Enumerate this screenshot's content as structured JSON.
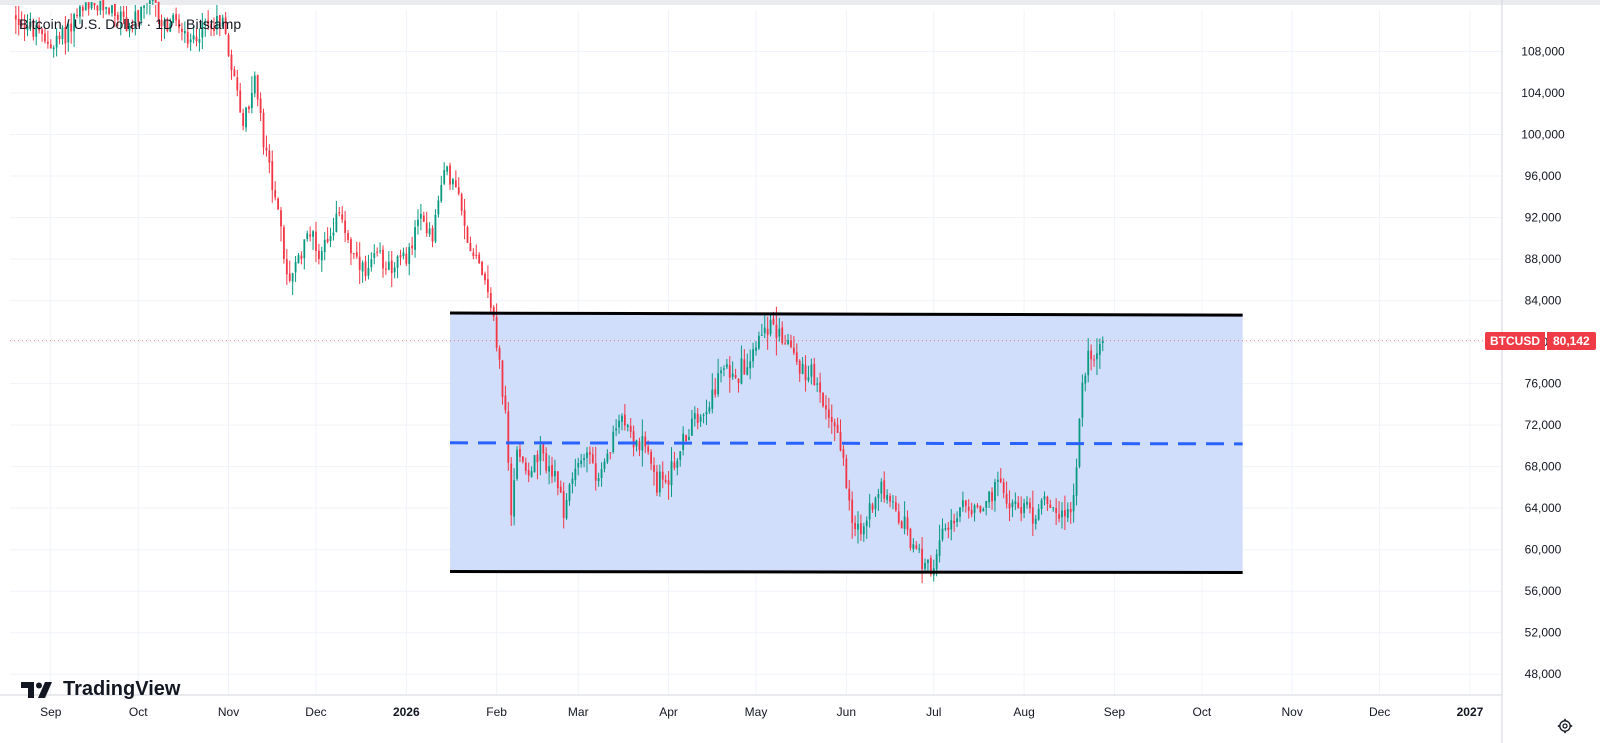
{
  "header": {
    "title": "Bitcoin / U.S. Dollar · 1D · Bitstamp"
  },
  "logo": {
    "text": "TradingView",
    "icon": "tradingview-logo-icon"
  },
  "price_badge": {
    "symbol": "BTCUSD",
    "value": "80,142",
    "color": "#ef3b45"
  },
  "settings": {
    "icon": "gear-icon"
  },
  "chart_data": {
    "type": "candlestick",
    "interval": "1D",
    "x_axis": {
      "start": "2025-08-18",
      "end": "2027-01-12",
      "tick_labels": [
        {
          "date": "2025-09-01",
          "label": "Sep"
        },
        {
          "date": "2025-10-01",
          "label": "Oct"
        },
        {
          "date": "2025-11-01",
          "label": "Nov"
        },
        {
          "date": "2025-12-01",
          "label": "Dec"
        },
        {
          "date": "2026-01-01",
          "label": "2026"
        },
        {
          "date": "2026-02-01",
          "label": "Feb"
        },
        {
          "date": "2026-03-01",
          "label": "Mar"
        },
        {
          "date": "2026-04-01",
          "label": "Apr"
        },
        {
          "date": "2026-05-01",
          "label": "May"
        },
        {
          "date": "2026-06-01",
          "label": "Jun"
        },
        {
          "date": "2026-07-01",
          "label": "Jul"
        },
        {
          "date": "2026-08-01",
          "label": "Aug"
        },
        {
          "date": "2026-09-01",
          "label": "Sep"
        },
        {
          "date": "2026-10-01",
          "label": "Oct"
        },
        {
          "date": "2026-11-01",
          "label": "Nov"
        },
        {
          "date": "2026-12-01",
          "label": "Dec"
        },
        {
          "date": "2027-01-01",
          "label": "2027"
        }
      ]
    },
    "y_axis": {
      "range": [
        46000,
        112000
      ],
      "position": "right",
      "tick_labels": [
        "108,000",
        "104,000",
        "100,000",
        "96,000",
        "92,000",
        "88,000",
        "84,000",
        "80,000",
        "76,000",
        "72,000",
        "68,000",
        "64,000",
        "60,000",
        "56,000",
        "52,000",
        "48,000"
      ],
      "ticks": [
        108000,
        104000,
        100000,
        96000,
        92000,
        88000,
        84000,
        80000,
        76000,
        72000,
        68000,
        64000,
        60000,
        56000,
        52000,
        48000
      ]
    },
    "grid": true,
    "colors": {
      "up": "#089981",
      "down": "#f23645",
      "channel_fill": "#cfdcfb",
      "midline": "#2962ff",
      "channel_line": "#000000"
    },
    "price_path": [
      [
        "2025-08-20",
        111500
      ],
      [
        "2025-08-28",
        109500
      ],
      [
        "2025-09-02",
        108500
      ],
      [
        "2025-09-10",
        111500
      ],
      [
        "2025-09-20",
        112500
      ],
      [
        "2025-09-28",
        110500
      ],
      [
        "2025-10-06",
        112500
      ],
      [
        "2025-10-10",
        110500
      ],
      [
        "2025-10-14",
        111000
      ],
      [
        "2025-10-18",
        108500
      ],
      [
        "2025-10-24",
        110500
      ],
      [
        "2025-10-30",
        111000
      ],
      [
        "2025-11-04",
        104000
      ],
      [
        "2025-11-06",
        101000
      ],
      [
        "2025-11-10",
        105500
      ],
      [
        "2025-11-13",
        99000
      ],
      [
        "2025-11-17",
        94500
      ],
      [
        "2025-11-21",
        86000
      ],
      [
        "2025-11-25",
        87500
      ],
      [
        "2025-11-28",
        91000
      ],
      [
        "2025-12-02",
        88500
      ],
      [
        "2025-12-06",
        91000
      ],
      [
        "2025-12-10",
        92000
      ],
      [
        "2025-12-14",
        88000
      ],
      [
        "2025-12-18",
        86000
      ],
      [
        "2025-12-22",
        88500
      ],
      [
        "2025-12-27",
        87500
      ],
      [
        "2026-01-01",
        88000
      ],
      [
        "2026-01-06",
        92000
      ],
      [
        "2026-01-10",
        90500
      ],
      [
        "2026-01-14",
        96500
      ],
      [
        "2026-01-18",
        95000
      ],
      [
        "2026-01-22",
        89500
      ],
      [
        "2026-01-26",
        88000
      ],
      [
        "2026-01-30",
        84000
      ],
      [
        "2026-02-02",
        78000
      ],
      [
        "2026-02-04",
        73000
      ],
      [
        "2026-02-06",
        63000
      ],
      [
        "2026-02-08",
        70000
      ],
      [
        "2026-02-12",
        67500
      ],
      [
        "2026-02-16",
        69000
      ],
      [
        "2026-02-20",
        67500
      ],
      [
        "2026-02-24",
        64000
      ],
      [
        "2026-02-28",
        67500
      ],
      [
        "2026-03-04",
        70000
      ],
      [
        "2026-03-08",
        66500
      ],
      [
        "2026-03-12",
        69500
      ],
      [
        "2026-03-16",
        73500
      ],
      [
        "2026-03-20",
        70500
      ],
      [
        "2026-03-24",
        69500
      ],
      [
        "2026-03-28",
        66500
      ],
      [
        "2026-04-02",
        67500
      ],
      [
        "2026-04-06",
        70500
      ],
      [
        "2026-04-10",
        72500
      ],
      [
        "2026-04-15",
        74500
      ],
      [
        "2026-04-20",
        77500
      ],
      [
        "2026-04-25",
        77000
      ],
      [
        "2026-04-30",
        79500
      ],
      [
        "2026-05-04",
        82000
      ],
      [
        "2026-05-08",
        81000
      ],
      [
        "2026-05-12",
        80000
      ],
      [
        "2026-05-16",
        77500
      ],
      [
        "2026-05-20",
        77000
      ],
      [
        "2026-05-24",
        73500
      ],
      [
        "2026-05-28",
        72500
      ],
      [
        "2026-05-31",
        68500
      ],
      [
        "2026-06-03",
        63500
      ],
      [
        "2026-06-06",
        61000
      ],
      [
        "2026-06-09",
        64000
      ],
      [
        "2026-06-13",
        66500
      ],
      [
        "2026-06-17",
        63500
      ],
      [
        "2026-06-21",
        62000
      ],
      [
        "2026-06-25",
        59500
      ],
      [
        "2026-06-28",
        59000
      ],
      [
        "2026-07-01",
        58500
      ],
      [
        "2026-07-04",
        61000
      ],
      [
        "2026-07-08",
        63000
      ],
      [
        "2026-07-12",
        64500
      ],
      [
        "2026-07-16",
        63500
      ],
      [
        "2026-07-20",
        65000
      ],
      [
        "2026-07-24",
        66000
      ],
      [
        "2026-07-28",
        64500
      ],
      [
        "2026-08-01",
        64000
      ],
      [
        "2026-08-05",
        63500
      ],
      [
        "2026-08-09",
        65000
      ],
      [
        "2026-08-13",
        63500
      ],
      [
        "2026-08-17",
        64000
      ],
      [
        "2026-08-19",
        68000
      ],
      [
        "2026-08-21",
        76000
      ],
      [
        "2026-08-23",
        78500
      ],
      [
        "2026-08-26",
        79500
      ],
      [
        "2026-08-28",
        80142
      ]
    ],
    "overlays": {
      "channel_top": {
        "from": "2026-01-16",
        "to": "2026-10-15",
        "y1": 82800,
        "y2": 82600
      },
      "channel_bottom": {
        "from": "2026-01-16",
        "to": "2026-10-15",
        "y1": 57900,
        "y2": 57800
      },
      "midline": {
        "from": "2026-01-16",
        "to": "2026-10-15",
        "y1": 70300,
        "y2": 70200
      }
    },
    "last_price": 80142
  }
}
